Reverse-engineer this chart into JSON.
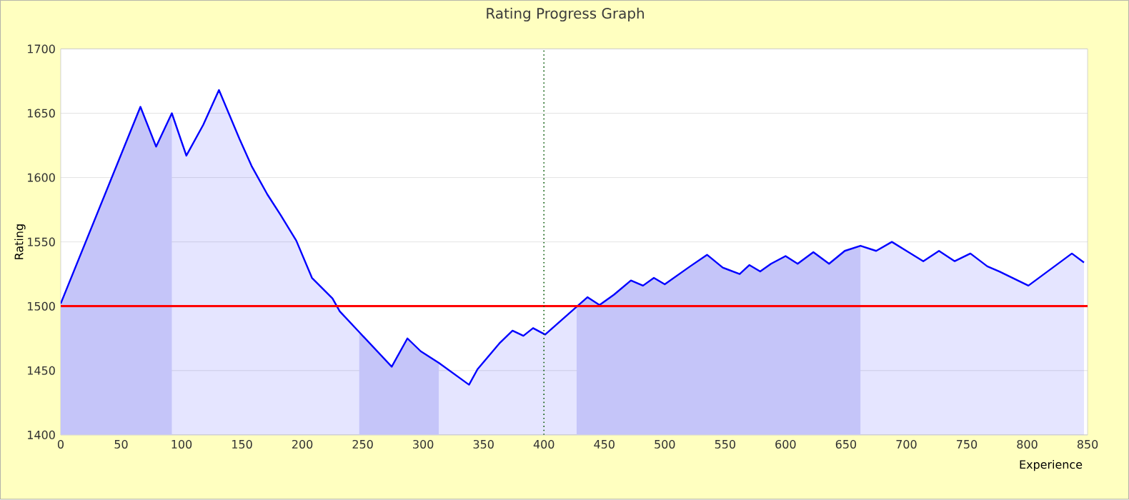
{
  "chart_data": {
    "type": "area",
    "title": "Rating Progress Graph",
    "xlabel": "Experience",
    "ylabel": "Rating",
    "x": [
      0,
      66,
      79,
      92,
      104,
      118,
      131,
      148,
      158,
      171,
      182,
      195,
      208,
      225,
      231,
      247,
      274,
      287,
      298,
      313,
      338,
      345,
      363,
      374,
      383,
      391,
      401,
      436,
      446,
      458,
      472,
      482,
      491,
      500,
      521,
      535,
      548,
      562,
      570,
      579,
      588,
      600,
      610,
      623,
      636,
      649,
      662,
      675,
      688,
      714,
      727,
      740,
      753,
      767,
      777,
      801,
      837,
      847
    ],
    "series": [
      {
        "color": "#0000ff",
        "values": [
          1502,
          1655,
          1624,
          1650,
          1617,
          1641,
          1668,
          1630,
          1609,
          1587,
          1571,
          1551,
          1522,
          1506,
          1496,
          1480,
          1453,
          1475,
          1465,
          1456,
          1439,
          1451,
          1471,
          1481,
          1477,
          1483,
          1478,
          1507,
          1501,
          1509,
          1520,
          1516,
          1522,
          1517,
          1531,
          1540,
          1530,
          1525,
          1532,
          1527,
          1533,
          1539,
          1533,
          1542,
          1533,
          1543,
          1547,
          1543,
          1550,
          1535,
          1543,
          1535,
          1541,
          1531,
          1527,
          1516,
          1541,
          1534
        ]
      }
    ],
    "xlim": [
      0,
      850
    ],
    "ylim": [
      1400,
      1700
    ],
    "xticks": [
      0,
      50,
      100,
      150,
      200,
      250,
      300,
      350,
      400,
      450,
      500,
      550,
      600,
      650,
      700,
      750,
      800,
      850
    ],
    "yticks": [
      1400,
      1450,
      1500,
      1550,
      1600,
      1650,
      1700
    ],
    "grid": "y",
    "ref_lines": [
      {
        "axis": "y",
        "value": 1500,
        "color": "#ff0000",
        "line_style": "solid"
      },
      {
        "axis": "x",
        "value": 400,
        "color": "#005500",
        "line_style": "dotted"
      }
    ],
    "bands": [
      {
        "axis": "x",
        "from": 0,
        "to": 92,
        "color": "#dcdcf9"
      },
      {
        "axis": "x",
        "from": 247,
        "to": 313,
        "color": "#dcdcf9"
      },
      {
        "axis": "x",
        "from": 427,
        "to": 662,
        "color": "#dcdcf9"
      }
    ]
  }
}
